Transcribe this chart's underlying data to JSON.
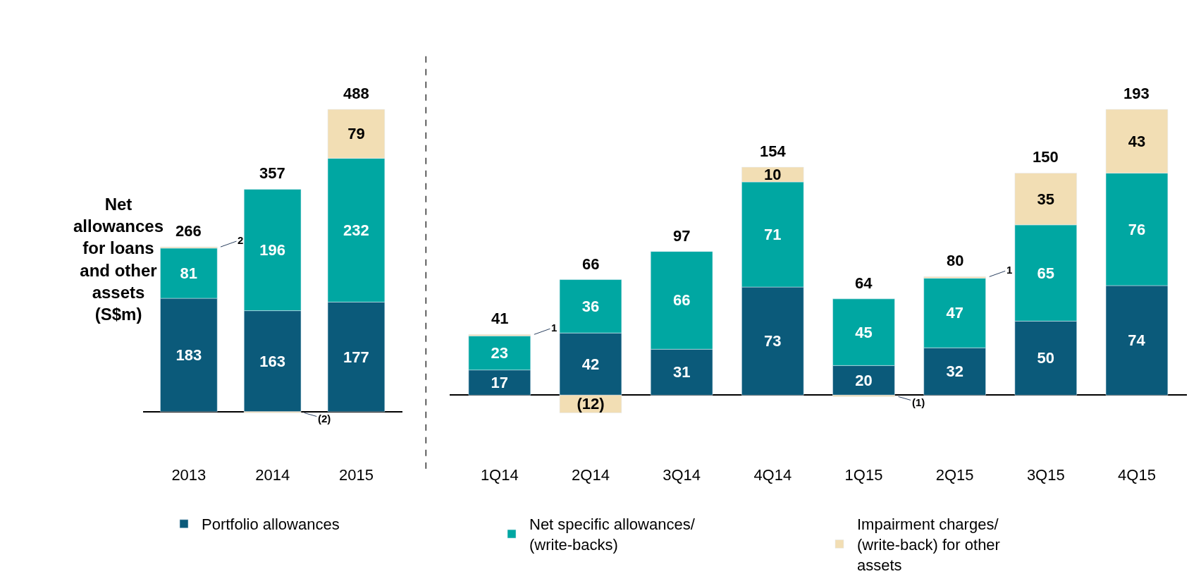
{
  "chart_data": [
    {
      "type": "bar",
      "stacked": true,
      "ylabel": "Net allowances for loans and other assets (S$m)",
      "categories": [
        "2013",
        "2014",
        "2015"
      ],
      "series": [
        {
          "name": "Portfolio allowances",
          "color": "#0b5a7a",
          "values": [
            183,
            163,
            177
          ]
        },
        {
          "name": "Net specific allowances/ (write-backs)",
          "color": "#00a7a2",
          "values": [
            81,
            196,
            232
          ]
        },
        {
          "name": "Impairment charges/ (write-back) for other assets",
          "color": "#f2deb4",
          "values": [
            2,
            -2,
            79
          ],
          "value_labels": [
            "2",
            "(2)",
            "79"
          ]
        }
      ],
      "totals": [
        "266",
        "357",
        "488"
      ],
      "data_labels": true,
      "legend": "bottom"
    },
    {
      "type": "bar",
      "stacked": true,
      "categories": [
        "1Q14",
        "2Q14",
        "3Q14",
        "4Q14",
        "1Q15",
        "2Q15",
        "3Q15",
        "4Q15"
      ],
      "series": [
        {
          "color": "#0b5a7a",
          "values": [
            17,
            42,
            31,
            73,
            20,
            32,
            50,
            74
          ]
        },
        {
          "color": "#00a7a2",
          "values": [
            23,
            36,
            66,
            71,
            45,
            47,
            65,
            76
          ]
        },
        {
          "color": "#f2deb4",
          "values": [
            1,
            -12,
            null,
            10,
            -1,
            1,
            35,
            43
          ],
          "value_labels": [
            "1",
            "(12)",
            null,
            "10",
            "(1)",
            "1",
            "35",
            "43"
          ]
        }
      ],
      "totals": [
        "41",
        "66",
        "97",
        "154",
        "64",
        "80",
        "150",
        "193"
      ],
      "data_labels": true
    }
  ]
}
